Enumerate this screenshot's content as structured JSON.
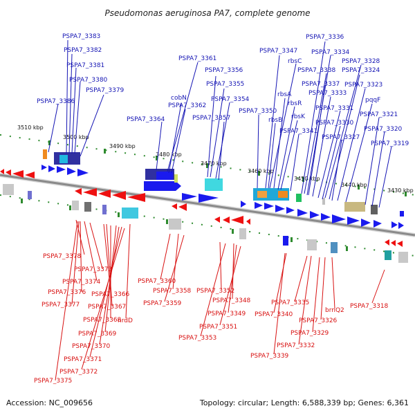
{
  "title": "Pseudomonas aeruginosa PA7, complete genome",
  "footer": {
    "accession": "Accession: NC_009656",
    "summary": "Topology: circular; Length: 6,588,339 bp; Genes: 6,361"
  },
  "ticks": [
    "3510 kbp",
    "3500 kbp",
    "3490 kbp",
    "3480 kbp",
    "3470 kbp",
    "3460 kbp",
    "3450 kbp",
    "3440 kbp",
    "3430 kbp"
  ],
  "blue_labels": [
    "PSPA7_3383",
    "PSPA7_3382",
    "PSPA7_3381",
    "PSPA7_3380",
    "PSPA7_3379",
    "PSPA7_3386",
    "PSPA7_3361",
    "PSPA7_3356",
    "PSPA7_3355",
    "cobN",
    "PSPA7_3354",
    "PSPA7_3362",
    "PSPA7_3357",
    "PSPA7_3364",
    "PSPA7_3347",
    "PSPA7_3350",
    "rbsC",
    "rbsA",
    "rbsR",
    "rbsK",
    "rbsB",
    "PSPA7_3341",
    "PSPA7_3336",
    "PSPA7_3334",
    "PSPA7_3328",
    "PSPA7_3338",
    "PSPA7_3337",
    "PSPA7_3324",
    "PSPA7_3333",
    "PSPA7_3323",
    "pqqF",
    "PSPA7_3331",
    "PSPA7_3321",
    "PSPA7_3330",
    "PSPA7_3320",
    "PSPA7_3327",
    "PSPA7_3319"
  ],
  "red_labels": [
    "PSPA7_3378",
    "PSPA7_3373",
    "PSPA7_3374",
    "PSPA7_3376",
    "PSPA7_3366",
    "PSPA7_3377",
    "PSPA7_3367",
    "nrdD",
    "PSPA7_3368",
    "PSPA7_3369",
    "PSPA7_3370",
    "PSPA7_3371",
    "PSPA7_3372",
    "PSPA7_3375",
    "PSPA7_3360",
    "PSPA7_3358",
    "PSPA7_3359",
    "PSPA7_3352",
    "PSPA7_3348",
    "PSPA7_3349",
    "PSPA7_3351",
    "PSPA7_3353",
    "PSPA7_3335",
    "PSPA7_3340",
    "PSPA7_3326",
    "brnQ2",
    "PSPA7_3329",
    "PSPA7_3332",
    "PSPA7_3339",
    "PSPA7_3318"
  ]
}
